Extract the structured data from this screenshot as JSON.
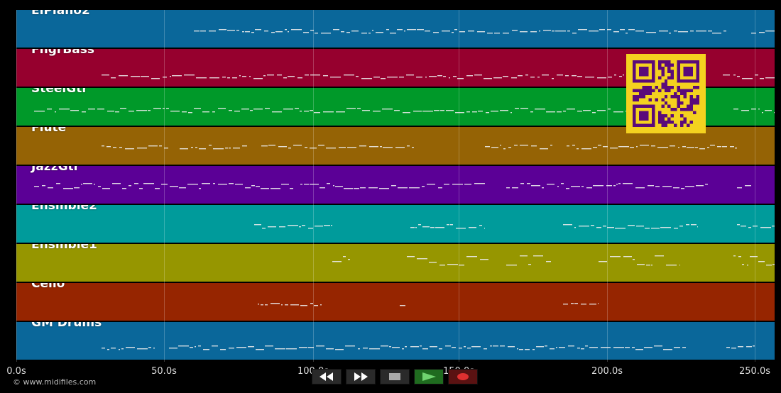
{
  "tracks": [
    {
      "name": "ElPiano2",
      "color": "#0a679a"
    },
    {
      "name": "FngrBass",
      "color": "#96002e"
    },
    {
      "name": "SteelGtr",
      "color": "#009929"
    },
    {
      "name": "Flute",
      "color": "#956305"
    },
    {
      "name": "JazzGtr",
      "color": "#5b0096"
    },
    {
      "name": "Ensmble2",
      "color": "#009b9b"
    },
    {
      "name": "Ensmble1",
      "color": "#969600"
    },
    {
      "name": "Cello",
      "color": "#962500"
    },
    {
      "name": "GM Drums",
      "color": "#0a679a"
    }
  ],
  "timeline": {
    "ticks": [
      "0.0s",
      "50.0s",
      "100.0s",
      "150.0s",
      "200.0s",
      "250.0s"
    ]
  },
  "transport": {
    "rewind_icon": "rewind-icon",
    "forward_icon": "fast-forward-icon",
    "stop_icon": "stop-icon",
    "play_icon": "play-icon",
    "record_icon": "record-icon"
  },
  "footer": {
    "copyright": "© www.midifiles.com"
  },
  "colors": {
    "qr_fg": "#5a0a7a",
    "qr_bg": "#f4d21f"
  }
}
